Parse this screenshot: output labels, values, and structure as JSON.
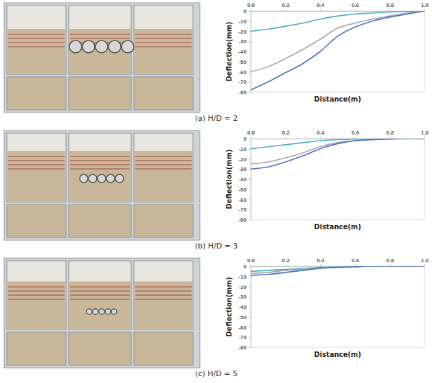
{
  "chart_data": [
    {
      "type": "line",
      "title": "(a) H/D = 2",
      "x_label": "Distance(m)",
      "y_label": "Deflection(mm)",
      "x": [
        0,
        0.1,
        0.2,
        0.3,
        0.4,
        0.5,
        0.6,
        0.7,
        0.8,
        0.9,
        1.0
      ],
      "series": [
        {
          "color": "#4bacc6",
          "values": [
            -20,
            -18,
            -15,
            -12,
            -8,
            -5,
            -3,
            -2,
            -1,
            -0.5,
            0
          ]
        },
        {
          "color": "#a5a5a5",
          "values": [
            -60,
            -55,
            -47,
            -38,
            -28,
            -17,
            -12,
            -8,
            -5,
            -2,
            0
          ]
        },
        {
          "color": "#4472c4",
          "values": [
            -78,
            -70,
            -61,
            -52,
            -40,
            -25,
            -16,
            -10,
            -6,
            -3,
            0
          ]
        }
      ],
      "xlim": [
        0,
        1
      ],
      "xticks": [
        {
          "value": 0,
          "label": "0.0"
        },
        0.2,
        0.4,
        0.6,
        0.8,
        {
          "value": 1,
          "label": "1.0"
        }
      ],
      "ylim": [
        -80,
        0
      ],
      "yticks": [
        -80,
        -70,
        -60,
        -50,
        -40,
        -30,
        -20,
        -10,
        0
      ],
      "grid": false
    },
    {
      "type": "line",
      "title": "(b) H/D = 3",
      "x_label": "Distance(m)",
      "y_label": "Deflection(mm)",
      "x": [
        0,
        0.1,
        0.2,
        0.3,
        0.4,
        0.5,
        0.6,
        0.7,
        0.8,
        0.9,
        1.0
      ],
      "series": [
        {
          "color": "#4bacc6",
          "values": [
            -10,
            -8,
            -6,
            -4,
            -2,
            -1,
            -0.5,
            0,
            0,
            0,
            0
          ]
        },
        {
          "color": "#a5a5a5",
          "values": [
            -25,
            -23,
            -19,
            -14,
            -8,
            -4,
            -2,
            -1,
            0,
            0,
            0
          ]
        },
        {
          "color": "#4472c4",
          "values": [
            -30,
            -28,
            -23,
            -17,
            -10,
            -5,
            -2,
            -1,
            -0.5,
            0,
            0
          ]
        }
      ],
      "xlim": [
        0,
        1
      ],
      "xticks": [
        {
          "value": 0,
          "label": "0.0"
        },
        0.2,
        0.4,
        0.6,
        0.8,
        {
          "value": 1,
          "label": "1.0"
        }
      ],
      "ylim": [
        -80,
        0
      ],
      "yticks": [
        -80,
        -70,
        -60,
        -50,
        -40,
        -30,
        -20,
        -10,
        0
      ],
      "grid": false
    },
    {
      "type": "line",
      "title": "(c) H/D = 5",
      "x_label": "Distance(m)",
      "y_label": "Deflection(mm)",
      "x": [
        0,
        0.1,
        0.2,
        0.3,
        0.4,
        0.5,
        0.6,
        0.7,
        0.8,
        0.9,
        1.0
      ],
      "series": [
        {
          "color": "#4bacc6",
          "values": [
            -5,
            -4,
            -3,
            -2,
            -1,
            -0.5,
            0,
            0,
            0,
            0,
            0
          ]
        },
        {
          "color": "#a5a5a5",
          "values": [
            -7,
            -6,
            -4,
            -3,
            -2,
            -1,
            -0.5,
            0,
            0,
            0,
            0
          ]
        },
        {
          "color": "#4472c4",
          "values": [
            -9,
            -8,
            -6,
            -4,
            -2,
            -1,
            -0.5,
            0,
            0,
            0,
            0
          ]
        }
      ],
      "xlim": [
        0,
        1
      ],
      "xticks": [
        {
          "value": 0,
          "label": "0.0"
        },
        0.2,
        0.4,
        0.6,
        0.8,
        {
          "value": 1,
          "label": "1.0"
        }
      ],
      "ylim": [
        -80,
        0
      ],
      "yticks": [
        -80,
        -70,
        -60,
        -50,
        -40,
        -30,
        -20,
        -10,
        0
      ],
      "grid": false
    }
  ]
}
